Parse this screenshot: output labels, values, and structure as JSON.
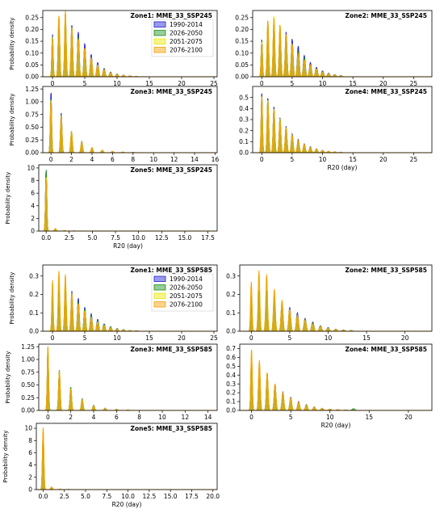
{
  "chart_data": [
    {
      "type": "area",
      "title": "Zone1: MME_33_SSP245",
      "ylabel": "Probability density",
      "xlabel": "",
      "xlim": [
        -1.5,
        25.5
      ],
      "ylim": [
        0,
        0.28
      ],
      "xticks": [
        "0",
        "5",
        "10",
        "15",
        "20",
        "25"
      ],
      "yticks": [
        "0.00",
        "0.05",
        "0.10",
        "0.15",
        "0.20",
        "0.25"
      ],
      "legend": "top-right",
      "series": [
        {
          "name": "1990-2014",
          "color": "#1f1fd0",
          "values": [
            0.18,
            0.25,
            0.25,
            0.22,
            0.19,
            0.14,
            0.095,
            0.06,
            0.035,
            0.02,
            0.012,
            0.007,
            0.004,
            0.002
          ]
        },
        {
          "name": "2026-2050",
          "color": "#1a8f1a",
          "values": [
            0.17,
            0.25,
            0.27,
            0.21,
            0.17,
            0.12,
            0.08,
            0.05,
            0.03,
            0.017,
            0.01,
            0.006,
            0.003,
            0.002
          ]
        },
        {
          "name": "2051-2075",
          "color": "#e8e800",
          "values": [
            0.17,
            0.26,
            0.27,
            0.21,
            0.16,
            0.12,
            0.08,
            0.05,
            0.03,
            0.017,
            0.01,
            0.006,
            0.003,
            0.002
          ]
        },
        {
          "name": "2076-2100",
          "color": "#f5a000",
          "values": [
            0.16,
            0.26,
            0.28,
            0.21,
            0.16,
            0.12,
            0.08,
            0.05,
            0.03,
            0.017,
            0.01,
            0.006,
            0.003,
            0.002
          ]
        }
      ]
    },
    {
      "type": "area",
      "title": "Zone2: MME_33_SSP245",
      "ylabel": "",
      "xlabel": "",
      "xlim": [
        -1.5,
        28
      ],
      "ylim": [
        0,
        0.28
      ],
      "xticks": [
        "0",
        "5",
        "10",
        "15",
        "20",
        "25"
      ],
      "yticks": [
        "0.00",
        "0.05",
        "0.10",
        "0.15",
        "0.20",
        "0.25"
      ],
      "series": [
        {
          "name": "1990-2014",
          "color": "#1f1fd0",
          "values": [
            0.16,
            0.22,
            0.23,
            0.21,
            0.19,
            0.16,
            0.13,
            0.09,
            0.06,
            0.04,
            0.025,
            0.015,
            0.009,
            0.005
          ]
        },
        {
          "name": "2026-2050",
          "color": "#1a8f1a",
          "values": [
            0.16,
            0.23,
            0.25,
            0.21,
            0.18,
            0.14,
            0.11,
            0.08,
            0.05,
            0.035,
            0.022,
            0.013,
            0.008,
            0.004
          ]
        },
        {
          "name": "2051-2075",
          "color": "#e8e800",
          "values": [
            0.15,
            0.24,
            0.26,
            0.22,
            0.18,
            0.14,
            0.1,
            0.07,
            0.05,
            0.033,
            0.02,
            0.012,
            0.007,
            0.004
          ]
        },
        {
          "name": "2076-2100",
          "color": "#f5a000",
          "values": [
            0.14,
            0.24,
            0.25,
            0.22,
            0.18,
            0.14,
            0.1,
            0.07,
            0.05,
            0.033,
            0.02,
            0.012,
            0.007,
            0.004
          ]
        }
      ]
    },
    {
      "type": "area",
      "title": "Zone3: MME_33_SSP245",
      "ylabel": "Probability density",
      "xlabel": "",
      "xlim": [
        -0.8,
        16.2
      ],
      "ylim": [
        0,
        1.3
      ],
      "xticks": [
        "0",
        "2",
        "4",
        "6",
        "8",
        "10",
        "12",
        "14",
        "16"
      ],
      "yticks": [
        "0.00",
        "0.25",
        "0.50",
        "0.75",
        "1.00",
        "1.25"
      ],
      "series": [
        {
          "name": "1990-2014",
          "color": "#1f1fd0",
          "values": [
            1.2,
            0.78,
            0.42,
            0.22,
            0.1,
            0.05,
            0.025,
            0.012,
            0.006
          ]
        },
        {
          "name": "2026-2050",
          "color": "#1a8f1a",
          "values": [
            1.08,
            0.74,
            0.42,
            0.22,
            0.1,
            0.05,
            0.025,
            0.012,
            0.006
          ]
        },
        {
          "name": "2051-2075",
          "color": "#e8e800",
          "values": [
            1.05,
            0.73,
            0.42,
            0.21,
            0.1,
            0.05,
            0.025,
            0.012,
            0.006
          ]
        },
        {
          "name": "2076-2100",
          "color": "#f5a000",
          "values": [
            1.02,
            0.72,
            0.41,
            0.21,
            0.1,
            0.05,
            0.025,
            0.012,
            0.006
          ]
        }
      ]
    },
    {
      "type": "area",
      "title": "Zone4: MME_33_SSP245",
      "ylabel": "",
      "xlabel": "R20 (day)",
      "xlim": [
        -1.5,
        28
      ],
      "ylim": [
        0,
        0.6
      ],
      "xticks": [
        "0",
        "5",
        "10",
        "15",
        "20",
        "25"
      ],
      "yticks": [
        "0.0",
        "0.1",
        "0.2",
        "0.3",
        "0.4",
        "0.5"
      ],
      "series": [
        {
          "name": "1990-2014",
          "color": "#1f1fd0",
          "values": [
            0.55,
            0.5,
            0.42,
            0.32,
            0.24,
            0.17,
            0.12,
            0.08,
            0.055,
            0.035,
            0.022,
            0.013,
            0.008,
            0.005
          ]
        },
        {
          "name": "2026-2050",
          "color": "#1a8f1a",
          "values": [
            0.53,
            0.48,
            0.4,
            0.31,
            0.23,
            0.16,
            0.11,
            0.075,
            0.05,
            0.033,
            0.02,
            0.012,
            0.007,
            0.004
          ]
        },
        {
          "name": "2051-2075",
          "color": "#e8e800",
          "values": [
            0.52,
            0.48,
            0.4,
            0.31,
            0.23,
            0.16,
            0.11,
            0.075,
            0.05,
            0.033,
            0.02,
            0.012,
            0.007,
            0.004
          ]
        },
        {
          "name": "2076-2100",
          "color": "#f5a000",
          "values": [
            0.52,
            0.47,
            0.39,
            0.3,
            0.22,
            0.16,
            0.11,
            0.075,
            0.05,
            0.033,
            0.02,
            0.012,
            0.007,
            0.004
          ]
        }
      ]
    },
    {
      "type": "area",
      "title": "Zone5: MME_33_SSP245",
      "ylabel": "Probability density",
      "xlabel": "R20 (day)",
      "xlim": [
        -0.8,
        18.5
      ],
      "ylim": [
        0,
        10.5
      ],
      "xticks": [
        "0.0",
        "2.5",
        "5.0",
        "7.5",
        "10.0",
        "12.5",
        "15.0",
        "17.5"
      ],
      "yticks": [
        "0",
        "2",
        "4",
        "6",
        "8",
        "10"
      ],
      "series": [
        {
          "name": "1990-2014",
          "color": "#1f1fd0",
          "values": [
            9.6,
            0.35,
            0.08,
            0.03,
            0.01
          ]
        },
        {
          "name": "2026-2050",
          "color": "#1a8f1a",
          "values": [
            9.8,
            0.35,
            0.08,
            0.03,
            0.01
          ]
        },
        {
          "name": "2051-2075",
          "color": "#e8e800",
          "values": [
            8.6,
            0.4,
            0.09,
            0.03,
            0.01
          ]
        },
        {
          "name": "2076-2100",
          "color": "#f5a000",
          "values": [
            8.2,
            0.4,
            0.09,
            0.03,
            0.01
          ]
        }
      ]
    },
    {
      "type": "area",
      "title": "Zone1: MME_33_SSP585",
      "ylabel": "Probability density",
      "xlabel": "",
      "xlim": [
        -1.5,
        25.5
      ],
      "ylim": [
        0,
        0.36
      ],
      "xticks": [
        "0",
        "5",
        "10",
        "15",
        "20",
        "25"
      ],
      "yticks": [
        "0.0",
        "0.1",
        "0.2",
        "0.3"
      ],
      "legend": "top-right",
      "series": [
        {
          "name": "1990-2014",
          "color": "#1f1fd0",
          "values": [
            0.21,
            0.26,
            0.26,
            0.22,
            0.18,
            0.13,
            0.095,
            0.065,
            0.04,
            0.025,
            0.015,
            0.009,
            0.005,
            0.003
          ]
        },
        {
          "name": "2026-2050",
          "color": "#1a8f1a",
          "values": [
            0.2,
            0.25,
            0.26,
            0.2,
            0.16,
            0.12,
            0.085,
            0.058,
            0.037,
            0.022,
            0.013,
            0.008,
            0.004,
            0.002
          ]
        },
        {
          "name": "2051-2075",
          "color": "#e8e800",
          "values": [
            0.26,
            0.31,
            0.3,
            0.21,
            0.15,
            0.11,
            0.075,
            0.05,
            0.032,
            0.02,
            0.012,
            0.007,
            0.004,
            0.002
          ]
        },
        {
          "name": "2076-2100",
          "color": "#f5a000",
          "values": [
            0.28,
            0.33,
            0.31,
            0.21,
            0.15,
            0.105,
            0.07,
            0.047,
            0.03,
            0.018,
            0.011,
            0.006,
            0.003,
            0.002
          ]
        }
      ]
    },
    {
      "type": "area",
      "title": "Zone2: MME_33_SSP585",
      "ylabel": "",
      "xlabel": "",
      "xlim": [
        -1.5,
        23.5
      ],
      "ylim": [
        0,
        0.36
      ],
      "xticks": [
        "0",
        "5",
        "10",
        "15",
        "20"
      ],
      "yticks": [
        "0.0",
        "0.1",
        "0.2",
        "0.3"
      ],
      "series": [
        {
          "name": "1990-2014",
          "color": "#1f1fd0",
          "values": [
            0.19,
            0.22,
            0.22,
            0.19,
            0.16,
            0.13,
            0.1,
            0.07,
            0.05,
            0.03,
            0.02,
            0.012,
            0.007,
            0.004
          ]
        },
        {
          "name": "2026-2050",
          "color": "#1a8f1a",
          "values": [
            0.18,
            0.21,
            0.21,
            0.18,
            0.15,
            0.12,
            0.09,
            0.065,
            0.045,
            0.028,
            0.018,
            0.011,
            0.006,
            0.003
          ]
        },
        {
          "name": "2051-2075",
          "color": "#e8e800",
          "values": [
            0.25,
            0.3,
            0.29,
            0.22,
            0.16,
            0.12,
            0.085,
            0.06,
            0.04,
            0.025,
            0.016,
            0.01,
            0.005,
            0.003
          ]
        },
        {
          "name": "2076-2100",
          "color": "#f5a000",
          "values": [
            0.27,
            0.33,
            0.31,
            0.23,
            0.17,
            0.12,
            0.085,
            0.06,
            0.04,
            0.025,
            0.016,
            0.01,
            0.005,
            0.003
          ]
        }
      ]
    },
    {
      "type": "area",
      "title": "Zone3: MME_33_SSP585",
      "ylabel": "Probability density",
      "xlabel": "",
      "xlim": [
        -0.8,
        14.8
      ],
      "ylim": [
        0,
        1.3
      ],
      "xticks": [
        "0",
        "2",
        "4",
        "6",
        "8",
        "10",
        "12",
        "14"
      ],
      "yticks": [
        "0.00",
        "0.25",
        "0.50",
        "0.75",
        "1.00",
        "1.25"
      ],
      "series": [
        {
          "name": "1990-2014",
          "color": "#1f1fd0",
          "values": [
            1.22,
            0.78,
            0.45,
            0.22,
            0.1,
            0.045,
            0.02,
            0.01
          ]
        },
        {
          "name": "2026-2050",
          "color": "#1a8f1a",
          "values": [
            1.2,
            0.8,
            0.46,
            0.23,
            0.1,
            0.045,
            0.02,
            0.01
          ]
        },
        {
          "name": "2051-2075",
          "color": "#e8e800",
          "values": [
            1.26,
            0.78,
            0.43,
            0.21,
            0.09,
            0.04,
            0.018,
            0.008
          ]
        },
        {
          "name": "2076-2100",
          "color": "#f5a000",
          "values": [
            1.28,
            0.76,
            0.42,
            0.2,
            0.09,
            0.04,
            0.018,
            0.008
          ]
        }
      ]
    },
    {
      "type": "area",
      "title": "Zone4: MME_33_SSP585",
      "ylabel": "",
      "xlabel": "R20 (day)",
      "xlim": [
        -1.5,
        23
      ],
      "ylim": [
        0,
        0.75
      ],
      "xticks": [
        "0",
        "5",
        "10",
        "15",
        "20"
      ],
      "yticks": [
        "0.0",
        "0.1",
        "0.2",
        "0.3",
        "0.4",
        "0.5",
        "0.6",
        "0.7"
      ],
      "series": [
        {
          "name": "1990-2014",
          "color": "#1f1fd0",
          "values": [
            0.62,
            0.52,
            0.42,
            0.3,
            0.21,
            0.15,
            0.1,
            0.065,
            0.04,
            0.025,
            0.015,
            0.009,
            0.005,
            0.003
          ]
        },
        {
          "name": "2026-2050",
          "color": "#1a8f1a",
          "values": [
            0.6,
            0.5,
            0.4,
            0.29,
            0.2,
            0.14,
            0.095,
            0.062,
            0.038,
            0.024,
            0.014,
            0.008,
            0.005,
            0.02
          ]
        },
        {
          "name": "2051-2075",
          "color": "#e8e800",
          "values": [
            0.66,
            0.55,
            0.42,
            0.3,
            0.2,
            0.14,
            0.09,
            0.058,
            0.036,
            0.022,
            0.013,
            0.008,
            0.004,
            0.002
          ]
        },
        {
          "name": "2076-2100",
          "color": "#f5a000",
          "values": [
            0.7,
            0.57,
            0.43,
            0.3,
            0.2,
            0.14,
            0.09,
            0.058,
            0.036,
            0.022,
            0.013,
            0.008,
            0.004,
            0.002
          ]
        }
      ]
    },
    {
      "type": "area",
      "title": "Zone5: MME_33_SSP585",
      "ylabel": "Probability density",
      "xlabel": "R20 (day)",
      "xlim": [
        -0.8,
        20.5
      ],
      "ylim": [
        0,
        10.8
      ],
      "xticks": [
        "0.0",
        "2.5",
        "5.0",
        "7.5",
        "10.0",
        "12.5",
        "15.0",
        "17.5",
        "20.0"
      ],
      "yticks": [
        "0",
        "2",
        "4",
        "6",
        "8",
        "10"
      ],
      "series": [
        {
          "name": "1990-2014",
          "color": "#1f1fd0",
          "values": [
            9.6,
            0.4,
            0.08,
            0.03,
            0.01
          ]
        },
        {
          "name": "2026-2050",
          "color": "#1a8f1a",
          "values": [
            9.7,
            0.4,
            0.08,
            0.03,
            0.01
          ]
        },
        {
          "name": "2051-2075",
          "color": "#e8e800",
          "values": [
            10.0,
            0.42,
            0.09,
            0.03,
            0.01
          ]
        },
        {
          "name": "2076-2100",
          "color": "#f5a000",
          "values": [
            10.2,
            0.42,
            0.09,
            0.03,
            0.01
          ]
        }
      ]
    }
  ]
}
